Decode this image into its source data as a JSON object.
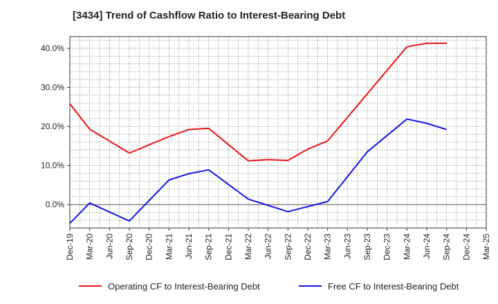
{
  "chart_data": {
    "type": "line",
    "title": "[3434]  Trend of Cashflow Ratio to Interest-Bearing Debt",
    "xlabel": "",
    "ylabel": "",
    "x": [
      "Dec-19",
      "Mar-20",
      "Jun-20",
      "Sep-20",
      "Dec-20",
      "Mar-21",
      "Jun-21",
      "Sep-21",
      "Dec-21",
      "Mar-22",
      "Jun-22",
      "Sep-22",
      "Dec-22",
      "Mar-23",
      "Jun-23",
      "Sep-23",
      "Dec-23",
      "Mar-24",
      "Jun-24",
      "Sep-24",
      "Dec-24",
      "Mar-25"
    ],
    "ylim": [
      -6,
      43
    ],
    "yticks": [
      0,
      10,
      20,
      30,
      40
    ],
    "ytick_labels": [
      "0.0%",
      "10.0%",
      "20.0%",
      "30.0%",
      "40.0%"
    ],
    "grid": true,
    "legend_position": "bottom",
    "series": [
      {
        "name": "Operating CF to Interest-Bearing Debt",
        "color": "#e81416",
        "points": [
          {
            "x": "Dec-19",
            "y": 25.8
          },
          {
            "x": "Mar-20",
            "y": 19.3
          },
          {
            "x": "Sep-20",
            "y": 13.2
          },
          {
            "x": "Mar-21",
            "y": 17.4
          },
          {
            "x": "Jun-21",
            "y": 19.2
          },
          {
            "x": "Sep-21",
            "y": 19.5
          },
          {
            "x": "Mar-22",
            "y": 11.2
          },
          {
            "x": "Jun-22",
            "y": 11.5
          },
          {
            "x": "Sep-22",
            "y": 11.3
          },
          {
            "x": "Dec-22",
            "y": 14.2
          },
          {
            "x": "Mar-23",
            "y": 16.3
          },
          {
            "x": "Mar-24",
            "y": 40.4
          },
          {
            "x": "Jun-24",
            "y": 41.3
          },
          {
            "x": "Sep-24",
            "y": 41.3
          }
        ]
      },
      {
        "name": "Free CF to Interest-Bearing Debt",
        "color": "#1414e0",
        "points": [
          {
            "x": "Dec-19",
            "y": -4.8
          },
          {
            "x": "Mar-20",
            "y": 0.4
          },
          {
            "x": "Sep-20",
            "y": -4.2
          },
          {
            "x": "Mar-21",
            "y": 6.3
          },
          {
            "x": "Jun-21",
            "y": 7.9
          },
          {
            "x": "Sep-21",
            "y": 8.9
          },
          {
            "x": "Mar-22",
            "y": 1.4
          },
          {
            "x": "Sep-22",
            "y": -1.8
          },
          {
            "x": "Mar-23",
            "y": 0.8
          },
          {
            "x": "Sep-23",
            "y": 13.5
          },
          {
            "x": "Mar-24",
            "y": 21.9
          },
          {
            "x": "Jun-24",
            "y": 20.8
          },
          {
            "x": "Sep-24",
            "y": 19.2
          }
        ]
      }
    ]
  }
}
